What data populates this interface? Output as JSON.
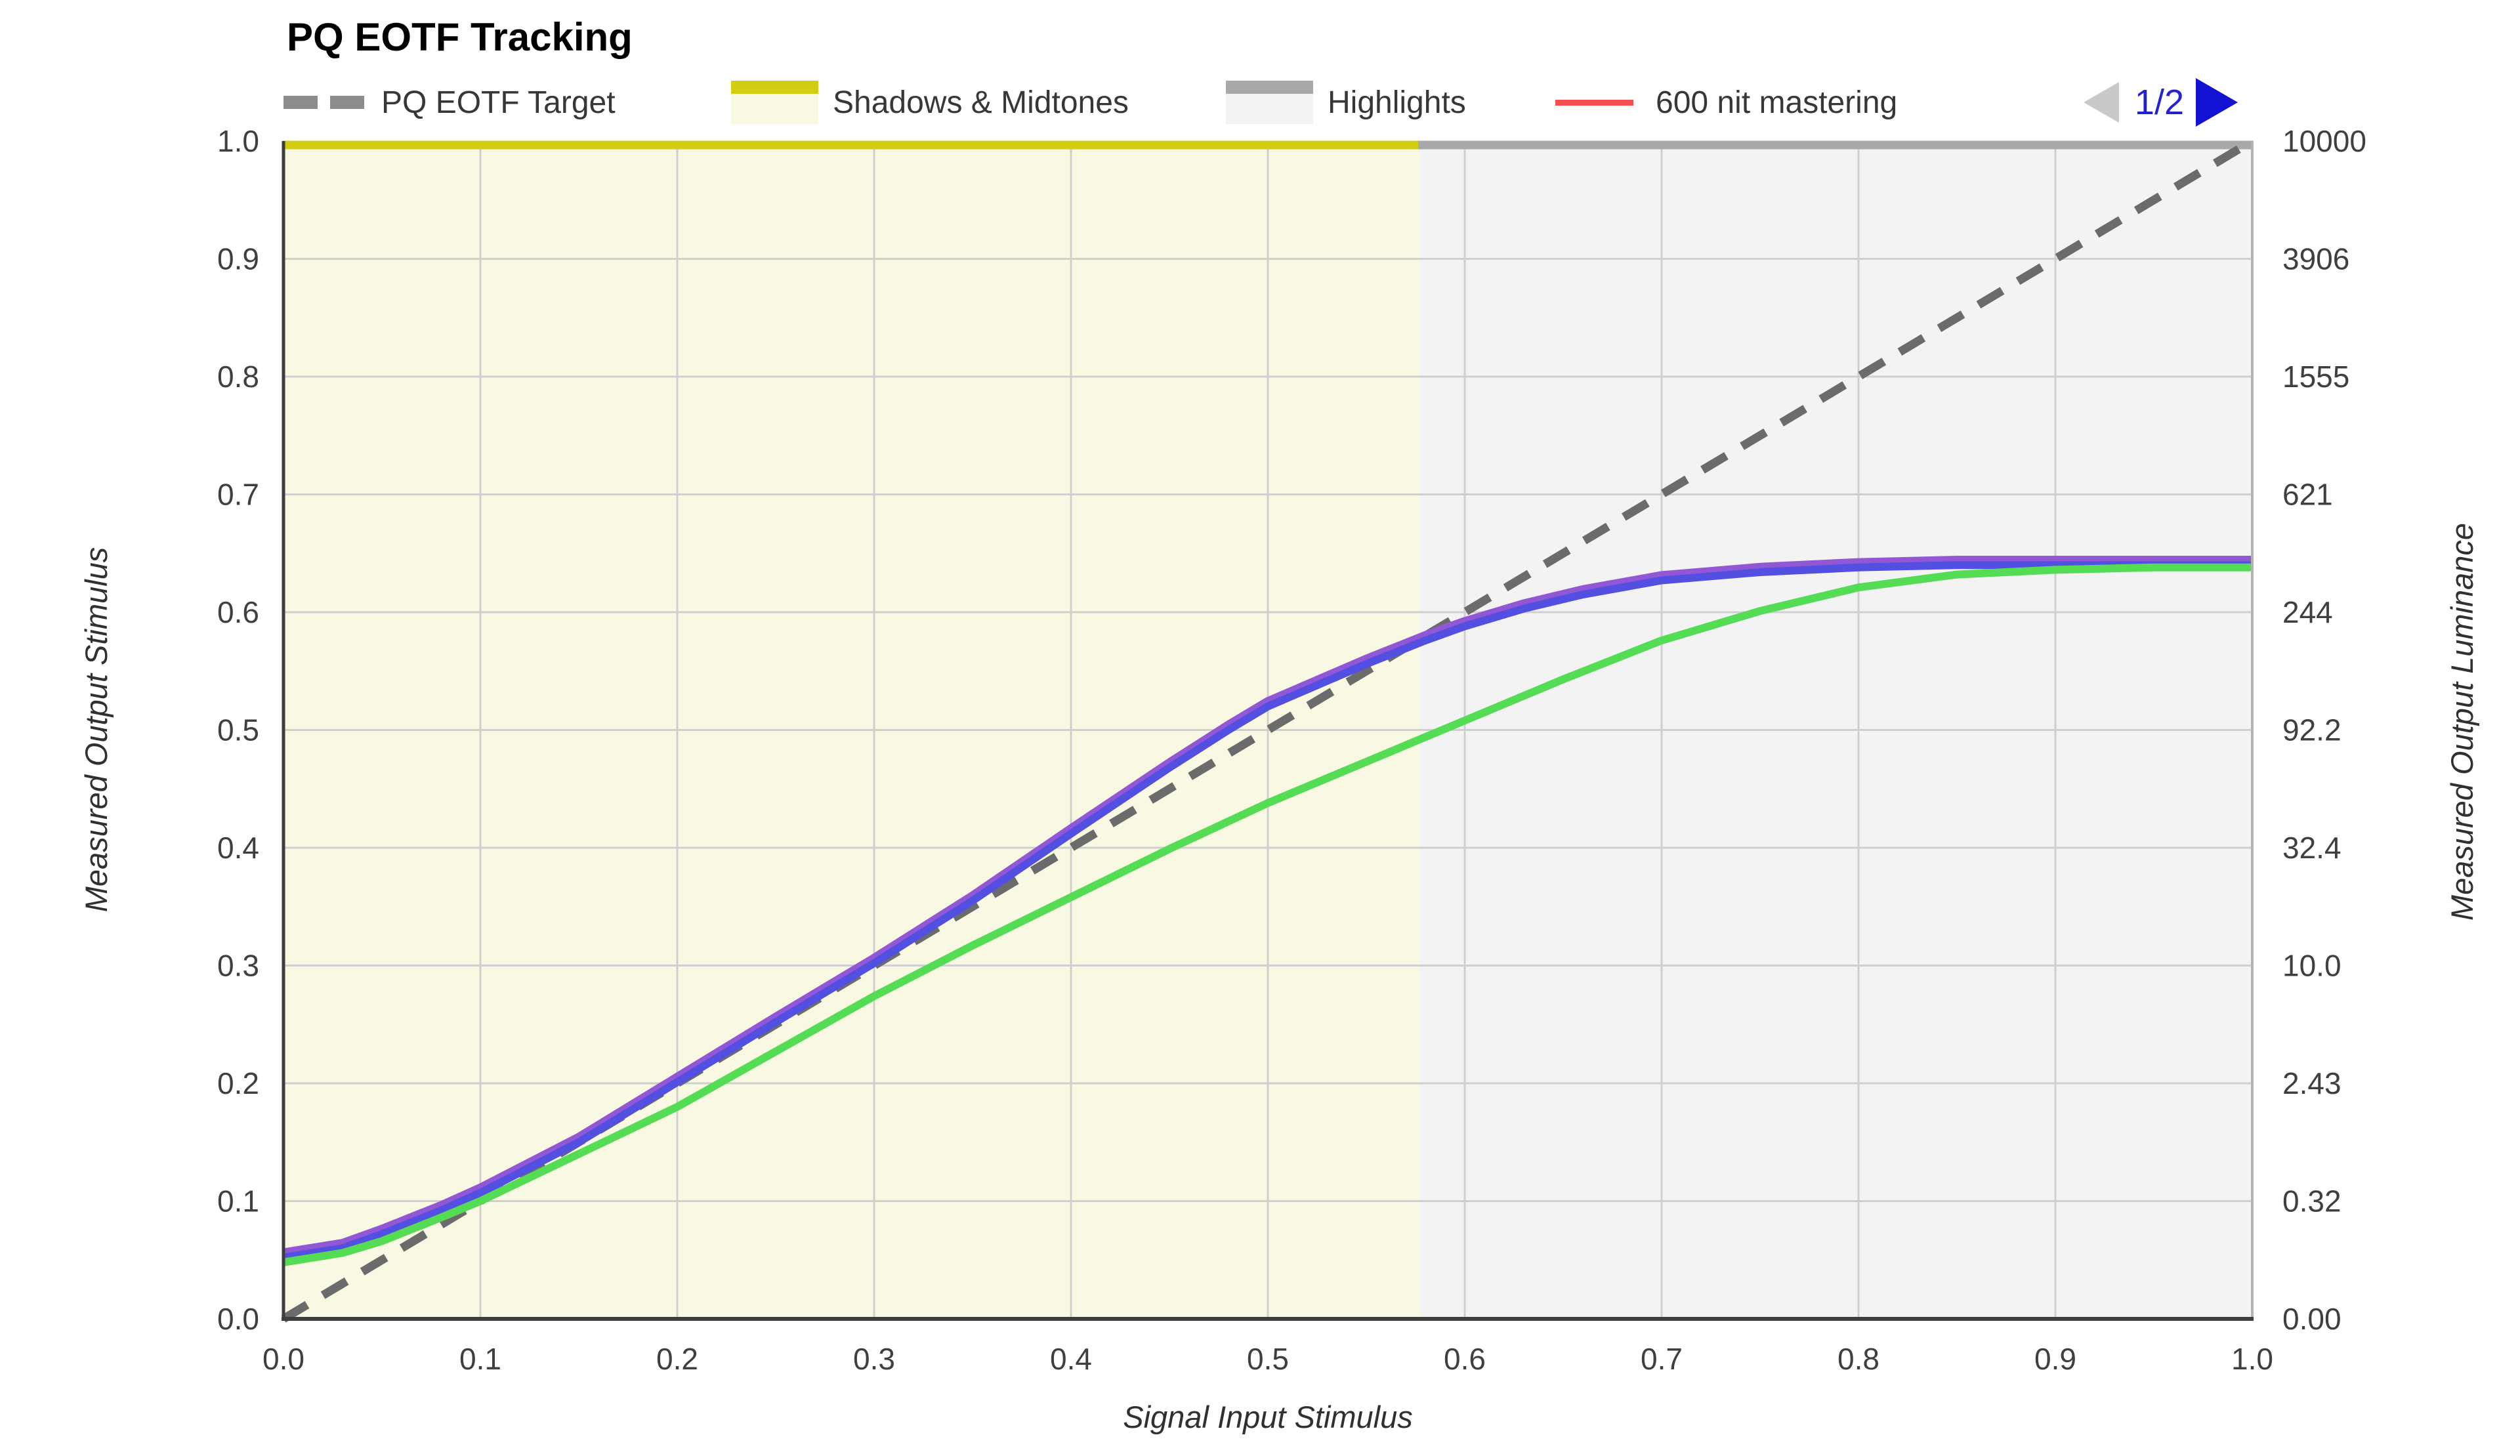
{
  "title": "PQ EOTF Tracking",
  "legend": {
    "items": [
      {
        "label": "PQ EOTF Target",
        "swatch": "dashed-line",
        "color": "#6b6b6b"
      },
      {
        "label": "Shadows & Midtones",
        "swatch": "band",
        "color": "#d3cd14",
        "fill": "#f8f8e3"
      },
      {
        "label": "Highlights",
        "swatch": "band",
        "color": "#a8a8a8",
        "fill": "#f3f3f3"
      },
      {
        "label": "600 nit mastering",
        "swatch": "line",
        "color": "#f4504f"
      }
    ],
    "pagination": {
      "page_indicator": "1/2",
      "prev_enabled": false,
      "next_enabled": true,
      "active_color": "#1212d2",
      "disabled_color": "#c9c9c9"
    }
  },
  "chart_data": {
    "type": "line",
    "title": "PQ EOTF Tracking",
    "xlabel": "Signal Input Stimulus",
    "ylabel_left": "Measured Output Stimulus",
    "ylabel_right": "Measured Output Luminance",
    "xlim": [
      0,
      1
    ],
    "ylim": [
      0,
      1
    ],
    "grid": true,
    "x_ticks": [
      "0.0",
      "0.1",
      "0.2",
      "0.3",
      "0.4",
      "0.5",
      "0.6",
      "0.7",
      "0.8",
      "0.9",
      "1.0"
    ],
    "y_left_ticks": [
      "0.0",
      "0.1",
      "0.2",
      "0.3",
      "0.4",
      "0.5",
      "0.6",
      "0.7",
      "0.8",
      "0.9",
      "1.0"
    ],
    "y_right_ticks_bottom_to_top": [
      "0.00",
      "0.32",
      "2.43",
      "10.0",
      "32.4",
      "92.2",
      "244",
      "621",
      "1555",
      "3906",
      "10000"
    ],
    "regions": [
      {
        "name": "Shadows & Midtones",
        "x0": 0,
        "x1": 0.577,
        "fill": "#f8f8e3",
        "edge": "#d3cd14"
      },
      {
        "name": "Highlights",
        "x0": 0.577,
        "x1": 1,
        "fill": "#f3f3f3",
        "edge": "#a8a8a8"
      }
    ],
    "series": [
      {
        "name": "PQ EOTF Target",
        "style": "dashed",
        "color": "#6b6b6b",
        "width": 13,
        "points": [
          [
            0,
            0
          ],
          [
            1,
            1
          ]
        ]
      },
      {
        "name": "measured violet",
        "style": "solid",
        "color": "#9257d5",
        "width": 14,
        "points": [
          [
            0,
            0.056
          ],
          [
            0.03,
            0.064
          ],
          [
            0.05,
            0.076
          ],
          [
            0.08,
            0.096
          ],
          [
            0.1,
            0.111
          ],
          [
            0.15,
            0.154
          ],
          [
            0.2,
            0.205
          ],
          [
            0.25,
            0.256
          ],
          [
            0.3,
            0.306
          ],
          [
            0.35,
            0.359
          ],
          [
            0.4,
            0.416
          ],
          [
            0.45,
            0.472
          ],
          [
            0.48,
            0.504
          ],
          [
            0.5,
            0.524
          ],
          [
            0.55,
            0.56
          ],
          [
            0.58,
            0.58
          ],
          [
            0.6,
            0.592
          ],
          [
            0.63,
            0.607
          ],
          [
            0.66,
            0.619
          ],
          [
            0.7,
            0.631
          ],
          [
            0.75,
            0.638
          ],
          [
            0.8,
            0.642
          ],
          [
            0.85,
            0.644
          ],
          [
            0.9,
            0.644
          ],
          [
            0.95,
            0.644
          ],
          [
            1,
            0.644
          ]
        ]
      },
      {
        "name": "measured blue",
        "style": "solid",
        "color": "#534fe1",
        "width": 12,
        "points": [
          [
            0,
            0.052
          ],
          [
            0.03,
            0.06
          ],
          [
            0.05,
            0.072
          ],
          [
            0.08,
            0.092
          ],
          [
            0.1,
            0.107
          ],
          [
            0.15,
            0.15
          ],
          [
            0.2,
            0.201
          ],
          [
            0.25,
            0.252
          ],
          [
            0.3,
            0.302
          ],
          [
            0.35,
            0.355
          ],
          [
            0.4,
            0.412
          ],
          [
            0.45,
            0.468
          ],
          [
            0.48,
            0.5
          ],
          [
            0.5,
            0.52
          ],
          [
            0.55,
            0.556
          ],
          [
            0.58,
            0.576
          ],
          [
            0.6,
            0.588
          ],
          [
            0.63,
            0.603
          ],
          [
            0.66,
            0.615
          ],
          [
            0.7,
            0.627
          ],
          [
            0.75,
            0.634
          ],
          [
            0.8,
            0.638
          ],
          [
            0.85,
            0.64
          ],
          [
            0.9,
            0.64
          ],
          [
            0.95,
            0.64
          ],
          [
            1,
            0.64
          ]
        ]
      },
      {
        "name": "measured green",
        "style": "solid",
        "color": "#55dc55",
        "width": 12,
        "points": [
          [
            0,
            0.048
          ],
          [
            0.03,
            0.056
          ],
          [
            0.05,
            0.066
          ],
          [
            0.08,
            0.086
          ],
          [
            0.1,
            0.1
          ],
          [
            0.15,
            0.14
          ],
          [
            0.2,
            0.18
          ],
          [
            0.25,
            0.227
          ],
          [
            0.3,
            0.274
          ],
          [
            0.35,
            0.317
          ],
          [
            0.4,
            0.358
          ],
          [
            0.45,
            0.399
          ],
          [
            0.5,
            0.438
          ],
          [
            0.55,
            0.473
          ],
          [
            0.6,
            0.508
          ],
          [
            0.65,
            0.543
          ],
          [
            0.7,
            0.576
          ],
          [
            0.75,
            0.601
          ],
          [
            0.8,
            0.621
          ],
          [
            0.85,
            0.632
          ],
          [
            0.9,
            0.636
          ],
          [
            0.95,
            0.638
          ],
          [
            1,
            0.638
          ]
        ]
      }
    ]
  }
}
